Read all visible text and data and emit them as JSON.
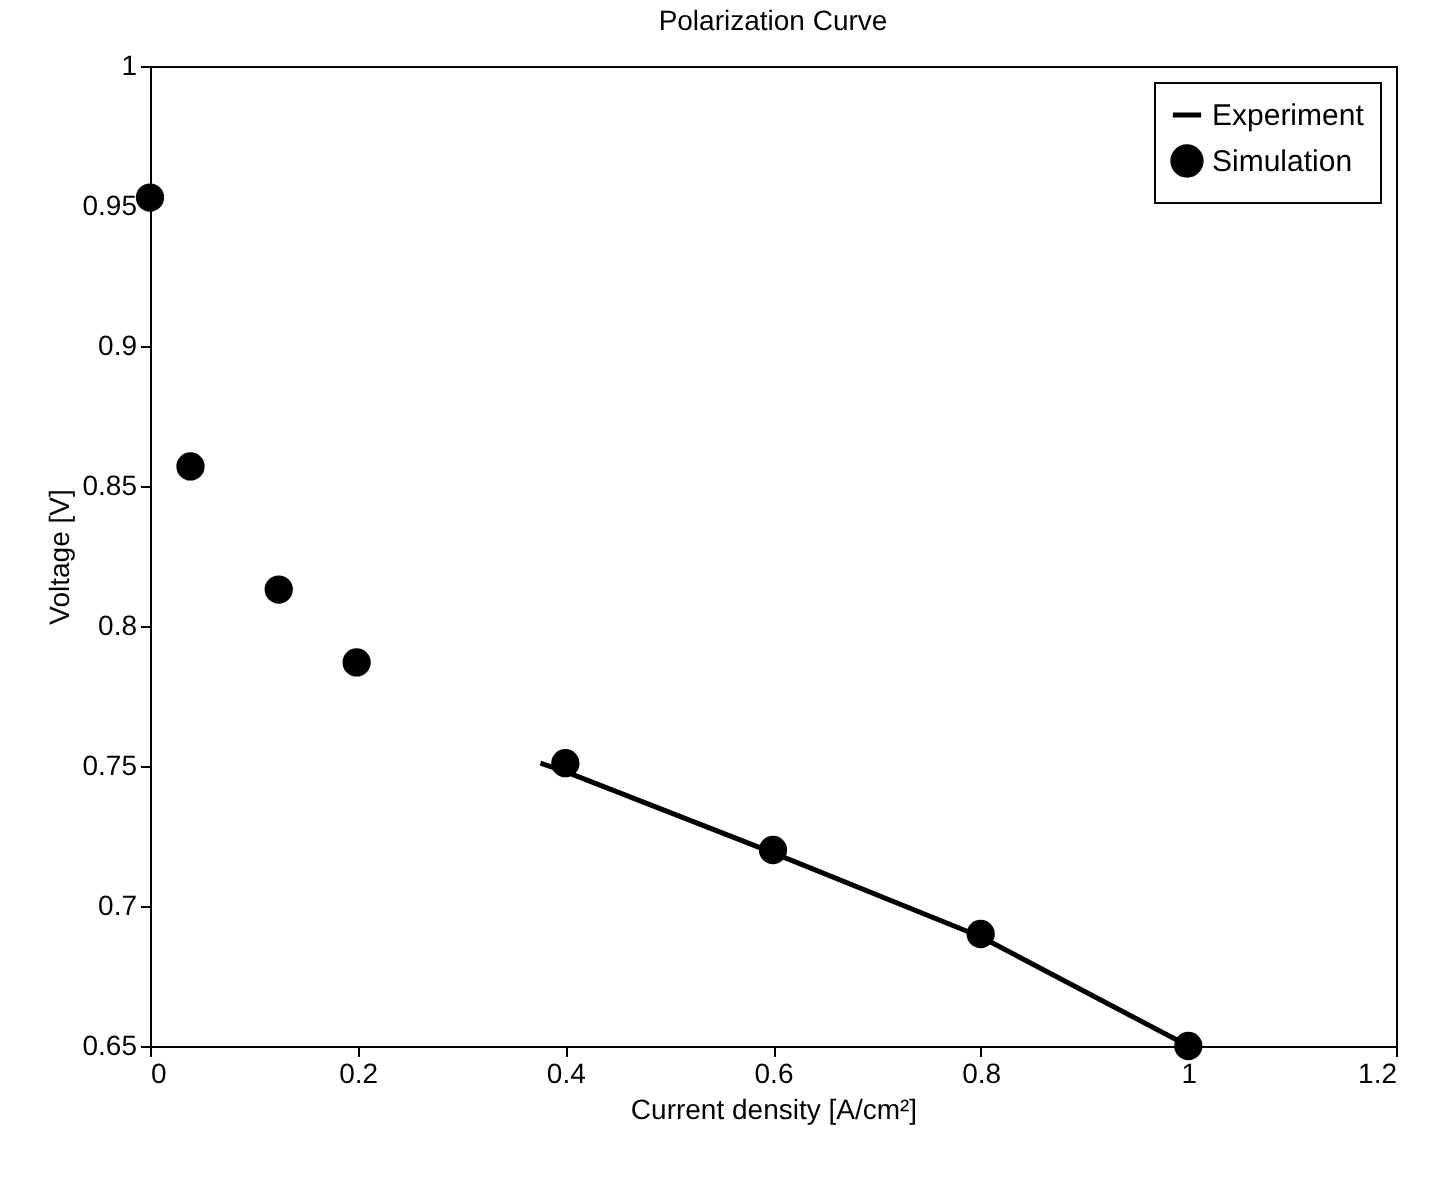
{
  "chart_data": {
    "type": "line",
    "title": "Polarization Curve",
    "xlabel": "Current density [A/cm²]",
    "ylabel": "Voltage [V]",
    "xlim": [
      0,
      1.2
    ],
    "xticks": [
      0,
      0.2,
      0.4,
      0.6,
      0.8,
      1,
      1.2
    ],
    "ylim": [
      0.65,
      1
    ],
    "yticks": [
      0.65,
      0.7,
      0.75,
      0.8,
      0.85,
      0.9,
      0.95,
      1
    ],
    "grid": false,
    "legend": "top right",
    "series": [
      {
        "name": "Experiment",
        "color": "#000000",
        "line_style": "solid",
        "marker": "none",
        "x": [
          0.376,
          0.4,
          0.6,
          0.8,
          1.0
        ],
        "values": [
          0.751,
          0.748,
          0.719,
          0.689,
          0.65
        ]
      },
      {
        "name": "Simulation",
        "type": "scatter",
        "color": "#000000",
        "marker": "circle",
        "x": [
          0,
          0.039,
          0.124,
          0.199,
          0.4,
          0.6,
          0.8,
          1.0
        ],
        "values": [
          0.953,
          0.857,
          0.813,
          0.787,
          0.751,
          0.72,
          0.69,
          0.65
        ]
      }
    ]
  }
}
